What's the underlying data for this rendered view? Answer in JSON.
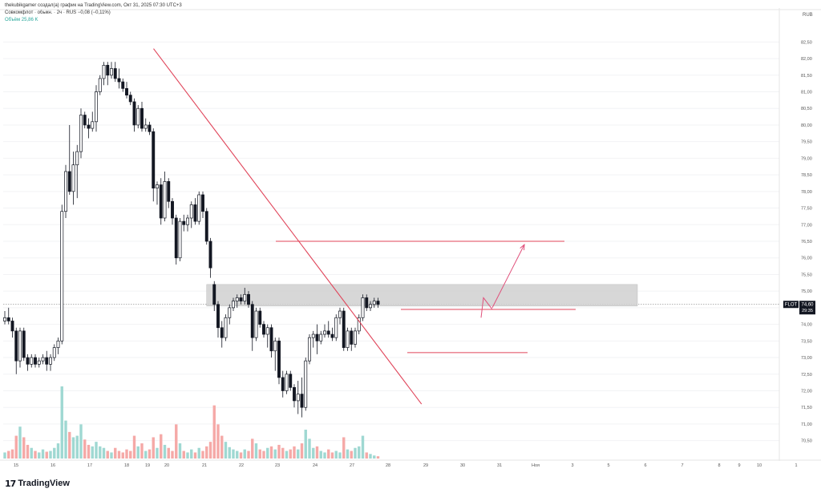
{
  "header": {
    "attribution": "thekubikgamer создал(а) график на TradingView.com, Окт 31, 2025 07:30 UTC+3",
    "symbol_line": "Совкомфлот · обыкн. · 2ч · RUS",
    "change": "−0,08 (−0,11%)",
    "volume_label": "Объём",
    "volume_value": "25,86 K",
    "currency": "RUB"
  },
  "price_marker": {
    "ticker": "FLOT",
    "price": "74,60",
    "countdown": "29:35"
  },
  "footer": {
    "logo_mark": "17",
    "brand": "TradingView"
  },
  "colors": {
    "up": "#26a69a",
    "down": "#ef5350",
    "candle": "#131722",
    "drawing": "#e0455a",
    "arrow": "#e04f7a",
    "zone": "#d0d0d0"
  },
  "chart_data": {
    "type": "candlestick",
    "title": "",
    "ylim": [
      70.25,
      82.75
    ],
    "y_ticks": [
      "82,50",
      "82,00",
      "81,50",
      "81,00",
      "80,50",
      "80,00",
      "79,50",
      "79,00",
      "78,50",
      "78,00",
      "77,50",
      "77,00",
      "76,50",
      "76,00",
      "75,50",
      "75,00",
      "74,50",
      "74,00",
      "73,50",
      "73,00",
      "72,50",
      "72,00",
      "71,50",
      "71,00",
      "70,50"
    ],
    "x_ticks": [
      "15",
      "16",
      "17",
      "18",
      "19",
      "20",
      "21",
      "22",
      "23",
      "24",
      "27",
      "28",
      "29",
      "30",
      "31",
      "Ноя",
      "3",
      "5",
      "6",
      "7",
      "8",
      "9",
      "10",
      "1"
    ],
    "last_price": 74.6,
    "candles": [
      {
        "o": 74.1,
        "h": 74.4,
        "l": 74.0,
        "c": 74.2
      },
      {
        "o": 74.2,
        "h": 74.5,
        "l": 74.0,
        "c": 74.1
      },
      {
        "o": 74.1,
        "h": 74.2,
        "l": 73.6,
        "c": 73.8
      },
      {
        "o": 73.8,
        "h": 73.9,
        "l": 72.5,
        "c": 72.9
      },
      {
        "o": 72.9,
        "h": 73.9,
        "l": 72.7,
        "c": 73.8
      },
      {
        "o": 73.8,
        "h": 73.9,
        "l": 72.9,
        "c": 73.0
      },
      {
        "o": 73.0,
        "h": 73.1,
        "l": 72.6,
        "c": 72.8
      },
      {
        "o": 72.8,
        "h": 73.1,
        "l": 72.7,
        "c": 73.0
      },
      {
        "o": 73.0,
        "h": 73.1,
        "l": 72.7,
        "c": 72.8
      },
      {
        "o": 72.8,
        "h": 73.0,
        "l": 72.7,
        "c": 72.9
      },
      {
        "o": 72.9,
        "h": 73.1,
        "l": 72.8,
        "c": 73.0
      },
      {
        "o": 73.0,
        "h": 73.2,
        "l": 72.6,
        "c": 72.8
      },
      {
        "o": 72.8,
        "h": 73.1,
        "l": 72.6,
        "c": 73.0
      },
      {
        "o": 73.0,
        "h": 73.4,
        "l": 72.9,
        "c": 73.3
      },
      {
        "o": 73.3,
        "h": 73.6,
        "l": 73.1,
        "c": 73.5
      },
      {
        "o": 73.5,
        "h": 77.6,
        "l": 73.4,
        "c": 77.4
      },
      {
        "o": 77.4,
        "h": 78.8,
        "l": 77.2,
        "c": 78.6
      },
      {
        "o": 78.6,
        "h": 80.0,
        "l": 77.9,
        "c": 78.0
      },
      {
        "o": 78.0,
        "h": 79.2,
        "l": 77.6,
        "c": 78.8
      },
      {
        "o": 78.8,
        "h": 79.4,
        "l": 77.8,
        "c": 79.2
      },
      {
        "o": 79.2,
        "h": 80.5,
        "l": 79.0,
        "c": 80.3
      },
      {
        "o": 80.3,
        "h": 80.4,
        "l": 79.9,
        "c": 80.0
      },
      {
        "o": 80.0,
        "h": 80.2,
        "l": 79.6,
        "c": 79.9
      },
      {
        "o": 79.9,
        "h": 80.4,
        "l": 79.8,
        "c": 80.1
      },
      {
        "o": 80.1,
        "h": 81.2,
        "l": 79.8,
        "c": 81.0
      },
      {
        "o": 81.0,
        "h": 81.5,
        "l": 80.9,
        "c": 81.4
      },
      {
        "o": 81.4,
        "h": 81.9,
        "l": 81.2,
        "c": 81.8
      },
      {
        "o": 81.8,
        "h": 81.9,
        "l": 81.2,
        "c": 81.5
      },
      {
        "o": 81.5,
        "h": 81.9,
        "l": 81.4,
        "c": 81.7
      },
      {
        "o": 81.7,
        "h": 81.9,
        "l": 81.3,
        "c": 81.4
      },
      {
        "o": 81.4,
        "h": 81.7,
        "l": 81.1,
        "c": 81.3
      },
      {
        "o": 81.3,
        "h": 81.4,
        "l": 81.0,
        "c": 81.1
      },
      {
        "o": 81.1,
        "h": 81.3,
        "l": 80.8,
        "c": 80.9
      },
      {
        "o": 80.9,
        "h": 81.0,
        "l": 80.6,
        "c": 80.7
      },
      {
        "o": 80.7,
        "h": 80.8,
        "l": 79.8,
        "c": 80.0
      },
      {
        "o": 80.0,
        "h": 80.6,
        "l": 79.9,
        "c": 80.5
      },
      {
        "o": 80.5,
        "h": 80.7,
        "l": 79.8,
        "c": 79.9
      },
      {
        "o": 79.9,
        "h": 80.2,
        "l": 79.8,
        "c": 80.0
      },
      {
        "o": 80.0,
        "h": 80.1,
        "l": 79.7,
        "c": 79.8
      },
      {
        "o": 79.8,
        "h": 79.9,
        "l": 77.7,
        "c": 78.1
      },
      {
        "o": 78.1,
        "h": 78.3,
        "l": 77.6,
        "c": 78.2
      },
      {
        "o": 78.2,
        "h": 78.4,
        "l": 77.0,
        "c": 77.2
      },
      {
        "o": 77.2,
        "h": 78.6,
        "l": 77.1,
        "c": 78.3
      },
      {
        "o": 78.3,
        "h": 78.4,
        "l": 77.5,
        "c": 77.7
      },
      {
        "o": 77.7,
        "h": 77.8,
        "l": 77.0,
        "c": 77.2
      },
      {
        "o": 77.2,
        "h": 77.3,
        "l": 75.8,
        "c": 76.0
      },
      {
        "o": 76.0,
        "h": 77.2,
        "l": 75.9,
        "c": 77.1
      },
      {
        "o": 77.1,
        "h": 77.3,
        "l": 76.8,
        "c": 77.0
      },
      {
        "o": 77.0,
        "h": 77.3,
        "l": 76.8,
        "c": 77.2
      },
      {
        "o": 77.2,
        "h": 77.7,
        "l": 76.9,
        "c": 77.6
      },
      {
        "o": 77.6,
        "h": 77.8,
        "l": 77.0,
        "c": 77.1
      },
      {
        "o": 77.1,
        "h": 78.0,
        "l": 77.0,
        "c": 77.9
      },
      {
        "o": 77.9,
        "h": 78.0,
        "l": 77.2,
        "c": 77.4
      },
      {
        "o": 77.4,
        "h": 77.5,
        "l": 76.4,
        "c": 76.5
      },
      {
        "o": 76.5,
        "h": 76.6,
        "l": 75.4,
        "c": 75.7
      },
      {
        "o": 75.2,
        "h": 75.3,
        "l": 74.4,
        "c": 74.6
      },
      {
        "o": 74.6,
        "h": 74.7,
        "l": 73.6,
        "c": 73.9
      },
      {
        "o": 73.9,
        "h": 74.1,
        "l": 73.3,
        "c": 73.6
      },
      {
        "o": 73.6,
        "h": 74.3,
        "l": 73.5,
        "c": 74.2
      },
      {
        "o": 74.2,
        "h": 74.6,
        "l": 74.0,
        "c": 74.5
      },
      {
        "o": 74.5,
        "h": 74.8,
        "l": 74.4,
        "c": 74.7
      },
      {
        "o": 74.7,
        "h": 74.9,
        "l": 74.5,
        "c": 74.8
      },
      {
        "o": 74.8,
        "h": 74.9,
        "l": 74.6,
        "c": 74.7
      },
      {
        "o": 74.7,
        "h": 75.1,
        "l": 74.6,
        "c": 74.9
      },
      {
        "o": 74.9,
        "h": 75.0,
        "l": 74.5,
        "c": 74.6
      },
      {
        "o": 74.6,
        "h": 74.7,
        "l": 73.2,
        "c": 73.6
      },
      {
        "o": 73.6,
        "h": 74.5,
        "l": 73.5,
        "c": 74.4
      },
      {
        "o": 74.4,
        "h": 74.5,
        "l": 73.9,
        "c": 74.0
      },
      {
        "o": 74.0,
        "h": 74.1,
        "l": 73.6,
        "c": 73.7
      },
      {
        "o": 73.7,
        "h": 74.0,
        "l": 73.3,
        "c": 73.9
      },
      {
        "o": 73.9,
        "h": 74.0,
        "l": 73.0,
        "c": 73.2
      },
      {
        "o": 73.2,
        "h": 73.6,
        "l": 72.6,
        "c": 73.5
      },
      {
        "o": 73.5,
        "h": 73.6,
        "l": 72.2,
        "c": 72.4
      },
      {
        "o": 72.4,
        "h": 72.6,
        "l": 71.8,
        "c": 72.0
      },
      {
        "o": 72.0,
        "h": 72.6,
        "l": 71.9,
        "c": 72.5
      },
      {
        "o": 72.5,
        "h": 72.6,
        "l": 72.0,
        "c": 72.1
      },
      {
        "o": 72.1,
        "h": 72.2,
        "l": 71.5,
        "c": 71.7
      },
      {
        "o": 71.7,
        "h": 72.3,
        "l": 71.3,
        "c": 71.9
      },
      {
        "o": 71.9,
        "h": 72.4,
        "l": 71.2,
        "c": 71.5
      },
      {
        "o": 71.5,
        "h": 73.0,
        "l": 71.4,
        "c": 72.9
      },
      {
        "o": 72.9,
        "h": 73.7,
        "l": 72.8,
        "c": 73.6
      },
      {
        "o": 73.6,
        "h": 73.8,
        "l": 73.3,
        "c": 73.7
      },
      {
        "o": 73.7,
        "h": 74.0,
        "l": 73.1,
        "c": 73.5
      },
      {
        "o": 73.5,
        "h": 73.8,
        "l": 73.4,
        "c": 73.7
      },
      {
        "o": 73.7,
        "h": 74.0,
        "l": 73.6,
        "c": 73.8
      },
      {
        "o": 73.8,
        "h": 74.1,
        "l": 73.6,
        "c": 73.7
      },
      {
        "o": 73.7,
        "h": 73.9,
        "l": 73.5,
        "c": 73.6
      },
      {
        "o": 73.6,
        "h": 74.3,
        "l": 73.5,
        "c": 74.2
      },
      {
        "o": 74.2,
        "h": 74.5,
        "l": 74.0,
        "c": 74.4
      },
      {
        "o": 74.4,
        "h": 74.5,
        "l": 73.2,
        "c": 73.3
      },
      {
        "o": 73.3,
        "h": 73.9,
        "l": 73.2,
        "c": 73.8
      },
      {
        "o": 73.8,
        "h": 73.9,
        "l": 73.2,
        "c": 73.4
      },
      {
        "o": 73.4,
        "h": 73.9,
        "l": 73.3,
        "c": 73.8
      },
      {
        "o": 73.8,
        "h": 74.3,
        "l": 73.7,
        "c": 74.2
      },
      {
        "o": 74.2,
        "h": 74.9,
        "l": 74.1,
        "c": 74.8
      },
      {
        "o": 74.8,
        "h": 74.9,
        "l": 74.4,
        "c": 74.5
      },
      {
        "o": 74.5,
        "h": 74.7,
        "l": 74.4,
        "c": 74.6
      },
      {
        "o": 74.6,
        "h": 74.8,
        "l": 74.5,
        "c": 74.7
      },
      {
        "o": 74.7,
        "h": 74.8,
        "l": 74.5,
        "c": 74.6
      }
    ],
    "volume_max": 95,
    "volumes": [
      {
        "v": 8,
        "up": true
      },
      {
        "v": 10,
        "up": false
      },
      {
        "v": 12,
        "up": false
      },
      {
        "v": 30,
        "up": false
      },
      {
        "v": 42,
        "up": true
      },
      {
        "v": 28,
        "up": false
      },
      {
        "v": 18,
        "up": false
      },
      {
        "v": 14,
        "up": true
      },
      {
        "v": 10,
        "up": false
      },
      {
        "v": 8,
        "up": true
      },
      {
        "v": 12,
        "up": true
      },
      {
        "v": 9,
        "up": false
      },
      {
        "v": 10,
        "up": true
      },
      {
        "v": 14,
        "up": true
      },
      {
        "v": 20,
        "up": true
      },
      {
        "v": 95,
        "up": true
      },
      {
        "v": 50,
        "up": true
      },
      {
        "v": 35,
        "up": false
      },
      {
        "v": 28,
        "up": true
      },
      {
        "v": 30,
        "up": true
      },
      {
        "v": 45,
        "up": true
      },
      {
        "v": 25,
        "up": false
      },
      {
        "v": 18,
        "up": false
      },
      {
        "v": 16,
        "up": true
      },
      {
        "v": 22,
        "up": true
      },
      {
        "v": 16,
        "up": true
      },
      {
        "v": 14,
        "up": true
      },
      {
        "v": 10,
        "up": false
      },
      {
        "v": 8,
        "up": true
      },
      {
        "v": 14,
        "up": false
      },
      {
        "v": 10,
        "up": false
      },
      {
        "v": 8,
        "up": false
      },
      {
        "v": 12,
        "up": false
      },
      {
        "v": 10,
        "up": false
      },
      {
        "v": 30,
        "up": false
      },
      {
        "v": 16,
        "up": true
      },
      {
        "v": 20,
        "up": false
      },
      {
        "v": 10,
        "up": true
      },
      {
        "v": 12,
        "up": false
      },
      {
        "v": 28,
        "up": false
      },
      {
        "v": 14,
        "up": true
      },
      {
        "v": 32,
        "up": false
      },
      {
        "v": 18,
        "up": true
      },
      {
        "v": 14,
        "up": false
      },
      {
        "v": 10,
        "up": false
      },
      {
        "v": 45,
        "up": false
      },
      {
        "v": 20,
        "up": true
      },
      {
        "v": 10,
        "up": false
      },
      {
        "v": 8,
        "up": true
      },
      {
        "v": 12,
        "up": true
      },
      {
        "v": 8,
        "up": false
      },
      {
        "v": 14,
        "up": true
      },
      {
        "v": 10,
        "up": false
      },
      {
        "v": 16,
        "up": false
      },
      {
        "v": 22,
        "up": false
      },
      {
        "v": 70,
        "up": false
      },
      {
        "v": 45,
        "up": false
      },
      {
        "v": 30,
        "up": false
      },
      {
        "v": 22,
        "up": true
      },
      {
        "v": 15,
        "up": true
      },
      {
        "v": 12,
        "up": true
      },
      {
        "v": 10,
        "up": true
      },
      {
        "v": 8,
        "up": false
      },
      {
        "v": 12,
        "up": true
      },
      {
        "v": 10,
        "up": false
      },
      {
        "v": 26,
        "up": false
      },
      {
        "v": 20,
        "up": true
      },
      {
        "v": 12,
        "up": false
      },
      {
        "v": 10,
        "up": false
      },
      {
        "v": 14,
        "up": true
      },
      {
        "v": 16,
        "up": false
      },
      {
        "v": 12,
        "up": true
      },
      {
        "v": 18,
        "up": false
      },
      {
        "v": 14,
        "up": false
      },
      {
        "v": 10,
        "up": true
      },
      {
        "v": 12,
        "up": false
      },
      {
        "v": 16,
        "up": false
      },
      {
        "v": 12,
        "up": true
      },
      {
        "v": 20,
        "up": false
      },
      {
        "v": 38,
        "up": true
      },
      {
        "v": 26,
        "up": true
      },
      {
        "v": 14,
        "up": true
      },
      {
        "v": 16,
        "up": false
      },
      {
        "v": 10,
        "up": true
      },
      {
        "v": 8,
        "up": true
      },
      {
        "v": 12,
        "up": false
      },
      {
        "v": 8,
        "up": false
      },
      {
        "v": 10,
        "up": true
      },
      {
        "v": 8,
        "up": true
      },
      {
        "v": 28,
        "up": false
      },
      {
        "v": 12,
        "up": true
      },
      {
        "v": 10,
        "up": false
      },
      {
        "v": 14,
        "up": true
      },
      {
        "v": 16,
        "up": true
      },
      {
        "v": 30,
        "up": true
      },
      {
        "v": 8,
        "up": false
      },
      {
        "v": 6,
        "up": true
      },
      {
        "v": 4,
        "up": true
      },
      {
        "v": 3,
        "up": false
      }
    ],
    "annotations": {
      "trendline": {
        "from": {
          "bar": 26,
          "price": 82.3
        },
        "to": {
          "bar": 77,
          "price": 71.6
        }
      },
      "resistance": {
        "price": 76.5,
        "from_bar": 54,
        "to_bar": 106
      },
      "support_upper": {
        "price": 74.45,
        "from_bar": 78,
        "to_bar": 107
      },
      "support_lower": {
        "price": 73.15,
        "from_bar": 82,
        "to_bar": 104
      },
      "zone": {
        "top": 75.2,
        "bottom": 74.55,
        "from_bar": 53,
        "to_bar": 126
      },
      "arrow": {
        "from": {
          "bar": 98,
          "price": 74.5
        },
        "to": {
          "bar": 103,
          "price": 76.4
        }
      },
      "zigzag": [
        {
          "bar": 95,
          "price": 74.2
        },
        {
          "bar": 97,
          "price": 74.8
        },
        {
          "bar": 98,
          "price": 74.45
        }
      ]
    }
  }
}
